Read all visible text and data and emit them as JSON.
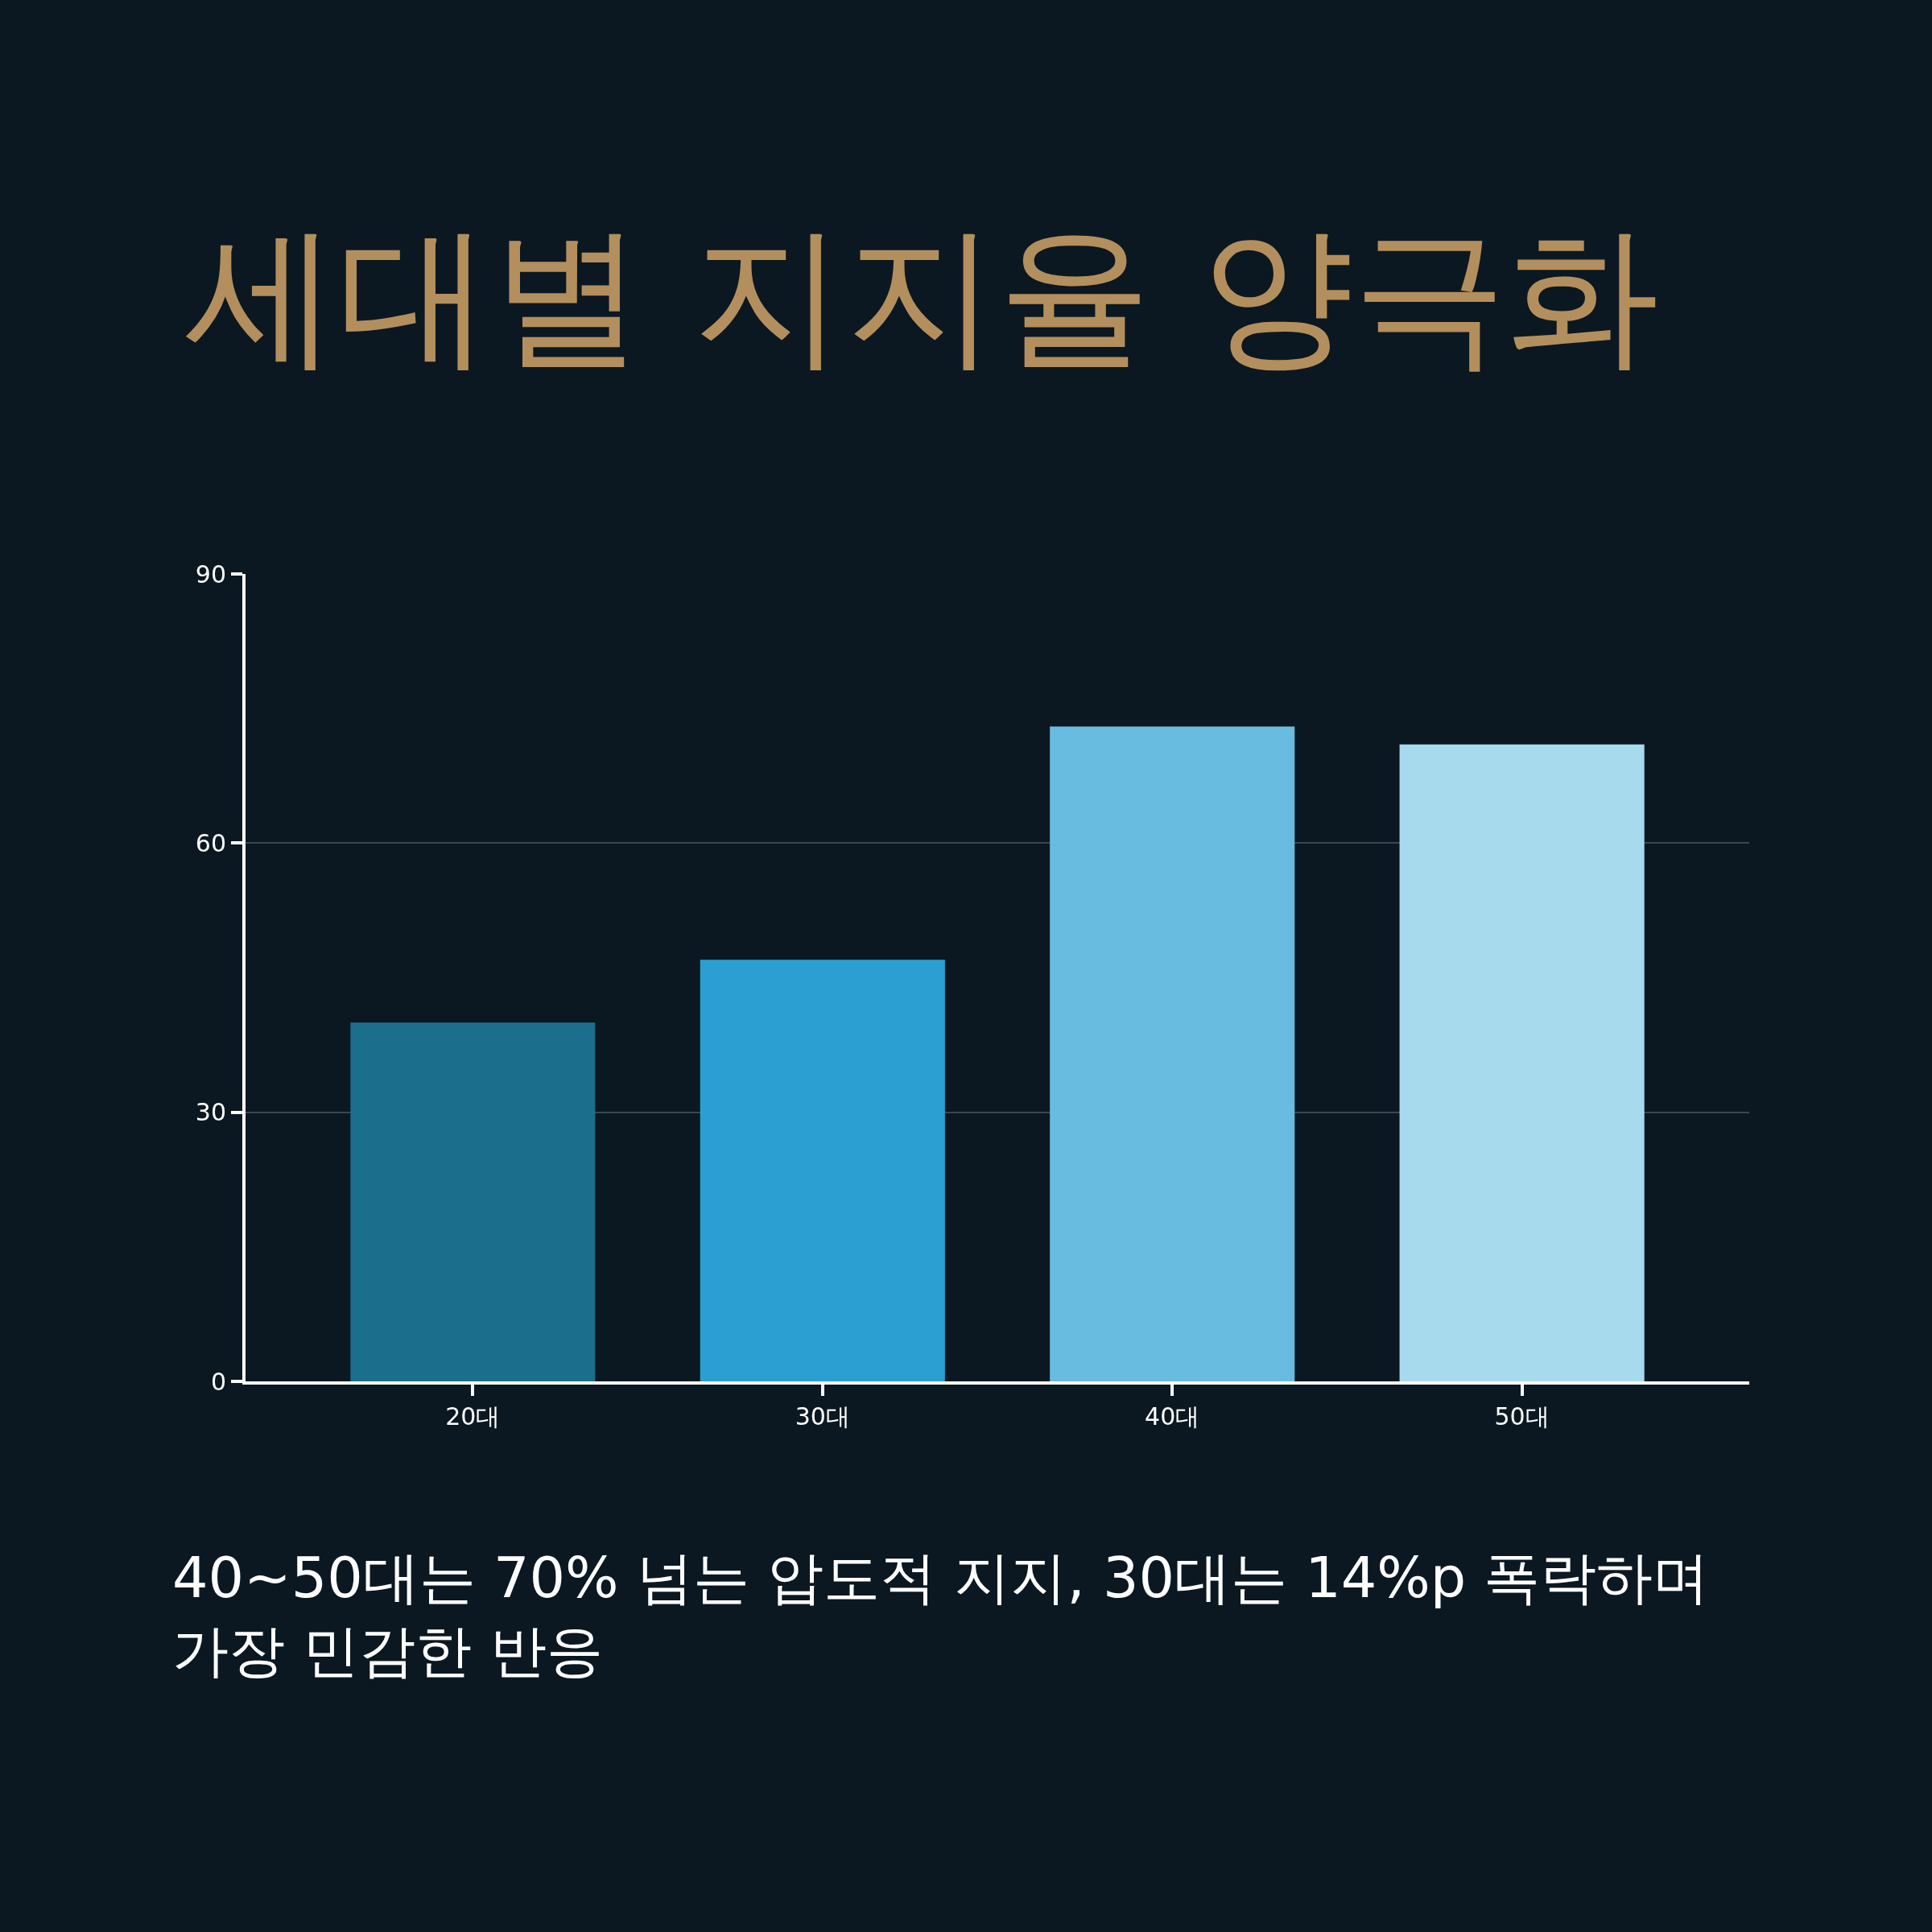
{
  "chart_data": {
    "type": "bar",
    "title": "세대별 지지율 양극화",
    "categories": [
      "20대",
      "30대",
      "40대",
      "50대"
    ],
    "values": [
      40,
      47,
      73,
      71
    ],
    "colors": [
      "#1c6e8d",
      "#2b9fd1",
      "#68bce0",
      "#a8daee"
    ],
    "ylim": [
      0,
      90
    ],
    "yticks": [
      0,
      30,
      60,
      90
    ],
    "grid": "y",
    "annotations": [
      "40~50대는 70% 넘는 압도적 지지, 30대는 14%p 폭락하며 가장 민감한 반응"
    ]
  }
}
